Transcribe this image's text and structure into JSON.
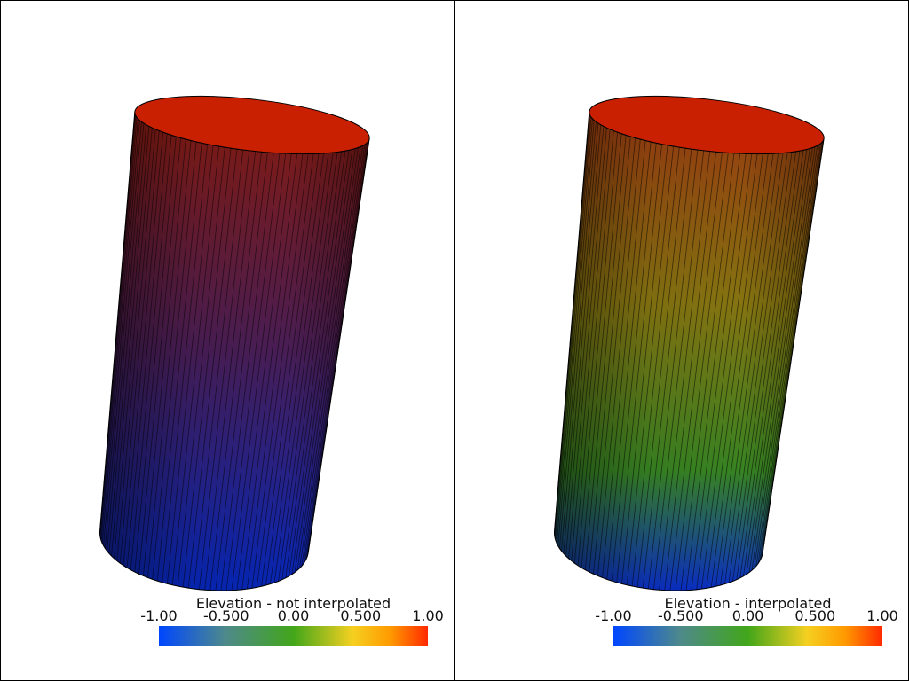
{
  "views": [
    {
      "scalar_bar": {
        "title": "Elevation - not interpolated",
        "clim": [
          -1,
          1
        ],
        "ticks": [
          {
            "value": -1,
            "label": "-1.00"
          },
          {
            "value": -0.5,
            "label": "-0.500"
          },
          {
            "value": 0,
            "label": "0.00"
          },
          {
            "value": 0.5,
            "label": "0.500"
          },
          {
            "value": 1,
            "label": "1.00"
          }
        ]
      }
    },
    {
      "scalar_bar": {
        "title": "Elevation - interpolated",
        "clim": [
          -1,
          1
        ],
        "ticks": [
          {
            "value": -1,
            "label": "-1.00"
          },
          {
            "value": -0.5,
            "label": "-0.500"
          },
          {
            "value": 0,
            "label": "0.00"
          },
          {
            "value": 0.5,
            "label": "0.500"
          },
          {
            "value": 1,
            "label": "1.00"
          }
        ]
      }
    }
  ]
}
